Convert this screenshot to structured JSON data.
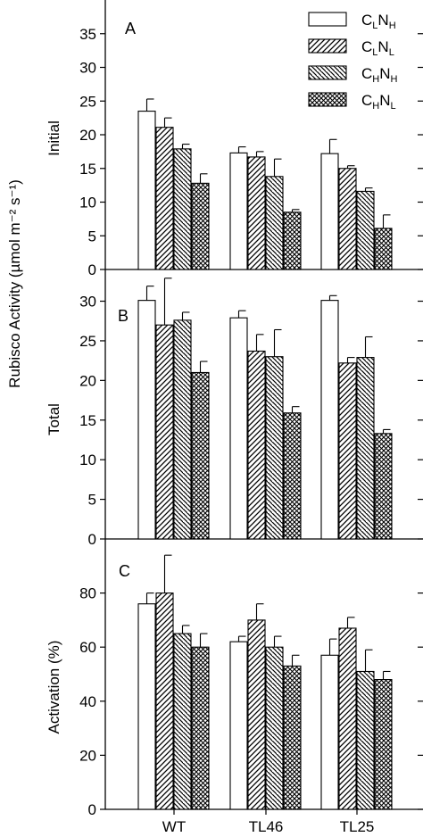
{
  "figure": {
    "ylabel_shared": "Rubisco Activity (µmol m⁻² s⁻¹)"
  },
  "chart_data": [
    {
      "type": "bar",
      "panel": "A",
      "ylabel": "Initial",
      "categories": [
        "WT",
        "TL46",
        "TL25"
      ],
      "ylim": [
        0,
        40
      ],
      "yticks": [
        0,
        5,
        10,
        15,
        20,
        25,
        30,
        35
      ],
      "grid": false,
      "legend_placement": "top-right",
      "series": [
        {
          "name": "CLNH",
          "pattern": "open",
          "values": [
            23.5,
            17.3,
            17.2
          ],
          "errors": [
            1.8,
            0.9,
            2.1
          ]
        },
        {
          "name": "CLNL",
          "pattern": "diagonal-up",
          "values": [
            21.1,
            16.7,
            15.0
          ],
          "errors": [
            1.4,
            0.8,
            0.4
          ]
        },
        {
          "name": "CHNH",
          "pattern": "diagonal-down",
          "values": [
            17.9,
            13.8,
            11.6
          ],
          "errors": [
            0.7,
            2.6,
            0.5
          ]
        },
        {
          "name": "CHNL",
          "pattern": "crosshatch",
          "values": [
            12.8,
            8.5,
            6.1
          ],
          "errors": [
            1.4,
            0.4,
            2.0
          ]
        }
      ]
    },
    {
      "type": "bar",
      "panel": "B",
      "ylabel": "Total",
      "categories": [
        "WT",
        "TL46",
        "TL25"
      ],
      "ylim": [
        0,
        34
      ],
      "yticks": [
        0,
        5,
        10,
        15,
        20,
        25,
        30
      ],
      "grid": false,
      "series": [
        {
          "name": "CLNH",
          "values": [
            30.1,
            27.9,
            30.1
          ],
          "errors": [
            1.8,
            0.9,
            0.6
          ]
        },
        {
          "name": "CLNL",
          "values": [
            27.0,
            23.7,
            22.2
          ],
          "errors": [
            5.9,
            2.1,
            0.7
          ]
        },
        {
          "name": "CHNH",
          "values": [
            27.6,
            23.0,
            22.9
          ],
          "errors": [
            1.0,
            3.4,
            2.6
          ]
        },
        {
          "name": "CHNL",
          "values": [
            21.0,
            15.9,
            13.3
          ],
          "errors": [
            1.4,
            0.8,
            0.5
          ]
        }
      ]
    },
    {
      "type": "bar",
      "panel": "C",
      "ylabel": "Activation (%)",
      "categories": [
        "WT",
        "TL46",
        "TL25"
      ],
      "ylim": [
        0,
        100
      ],
      "yticks": [
        0,
        20,
        40,
        60,
        80
      ],
      "grid": false,
      "series": [
        {
          "name": "CLNH",
          "values": [
            76,
            62,
            57
          ],
          "errors": [
            4,
            2,
            6
          ]
        },
        {
          "name": "CLNL",
          "values": [
            80,
            70,
            67
          ],
          "errors": [
            14,
            6,
            4
          ]
        },
        {
          "name": "CHNH",
          "values": [
            65,
            60,
            51
          ],
          "errors": [
            3,
            4,
            8
          ]
        },
        {
          "name": "CHNL",
          "values": [
            60,
            53,
            48
          ],
          "errors": [
            5,
            4,
            3
          ]
        }
      ]
    }
  ]
}
